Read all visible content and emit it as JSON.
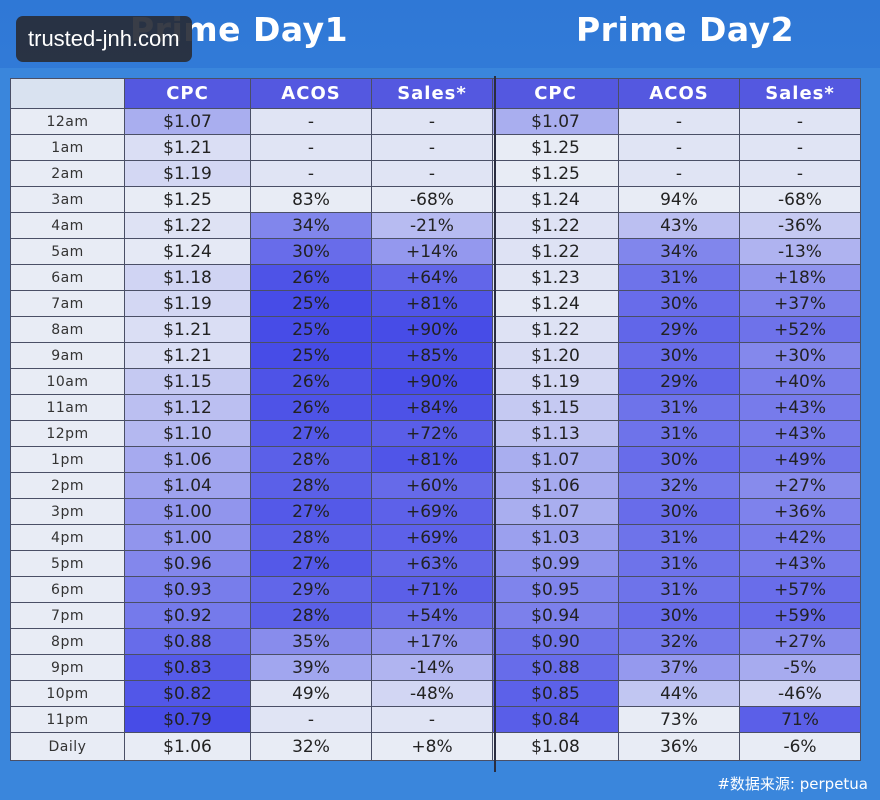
{
  "titles": {
    "day1": "Prime Day1",
    "day2": "Prime Day2"
  },
  "watermark": "trusted-jnh.com",
  "source": "#数据来源: perpetua",
  "table": {
    "headers": [
      "",
      "CPC",
      "ACOS",
      "Sales*",
      "CPC",
      "ACOS",
      "Sales*"
    ],
    "rows": [
      [
        "12am",
        "$1.07",
        "-",
        "-",
        "$1.07",
        "-",
        "-"
      ],
      [
        "1am",
        "$1.21",
        "-",
        "-",
        "$1.25",
        "-",
        "-"
      ],
      [
        "2am",
        "$1.19",
        "-",
        "-",
        "$1.25",
        "-",
        "-"
      ],
      [
        "3am",
        "$1.25",
        "83%",
        "-68%",
        "$1.24",
        "94%",
        "-68%"
      ],
      [
        "4am",
        "$1.22",
        "34%",
        "-21%",
        "$1.22",
        "43%",
        "-36%"
      ],
      [
        "5am",
        "$1.24",
        "30%",
        "+14%",
        "$1.22",
        "34%",
        "-13%"
      ],
      [
        "6am",
        "$1.18",
        "26%",
        "+64%",
        "$1.23",
        "31%",
        "+18%"
      ],
      [
        "7am",
        "$1.19",
        "25%",
        "+81%",
        "$1.24",
        "30%",
        "+37%"
      ],
      [
        "8am",
        "$1.21",
        "25%",
        "+90%",
        "$1.22",
        "29%",
        "+52%"
      ],
      [
        "9am",
        "$1.21",
        "25%",
        "+85%",
        "$1.20",
        "30%",
        "+30%"
      ],
      [
        "10am",
        "$1.15",
        "26%",
        "+90%",
        "$1.19",
        "29%",
        "+40%"
      ],
      [
        "11am",
        "$1.12",
        "26%",
        "+84%",
        "$1.15",
        "31%",
        "+43%"
      ],
      [
        "12pm",
        "$1.10",
        "27%",
        "+72%",
        "$1.13",
        "31%",
        "+43%"
      ],
      [
        "1pm",
        "$1.06",
        "28%",
        "+81%",
        "$1.07",
        "30%",
        "+49%"
      ],
      [
        "2pm",
        "$1.04",
        "28%",
        "+60%",
        "$1.06",
        "32%",
        "+27%"
      ],
      [
        "3pm",
        "$1.00",
        "27%",
        "+69%",
        "$1.07",
        "30%",
        "+36%"
      ],
      [
        "4pm",
        "$1.00",
        "28%",
        "+69%",
        "$1.03",
        "31%",
        "+42%"
      ],
      [
        "5pm",
        "$0.96",
        "27%",
        "+63%",
        "$0.99",
        "31%",
        "+43%"
      ],
      [
        "6pm",
        "$0.93",
        "29%",
        "+71%",
        "$0.95",
        "31%",
        "+57%"
      ],
      [
        "7pm",
        "$0.92",
        "28%",
        "+54%",
        "$0.94",
        "30%",
        "+59%"
      ],
      [
        "8pm",
        "$0.88",
        "35%",
        "+17%",
        "$0.90",
        "32%",
        "+27%"
      ],
      [
        "9pm",
        "$0.83",
        "39%",
        "-14%",
        "$0.88",
        "37%",
        "-5%"
      ],
      [
        "10pm",
        "$0.82",
        "49%",
        "-48%",
        "$0.85",
        "44%",
        "-46%"
      ],
      [
        "11pm",
        "$0.79",
        "-",
        "-",
        "$0.84",
        "73%",
        "71%"
      ]
    ],
    "total": [
      "Daily",
      "$1.06",
      "32%",
      "+8%",
      "$1.08",
      "36%",
      "-6%"
    ]
  },
  "colors": {
    "header_bg": "#5458e0",
    "cell_light": "#e8ecf5",
    "cell_dark": "#3f44e6",
    "background": "#3a86dc"
  }
}
